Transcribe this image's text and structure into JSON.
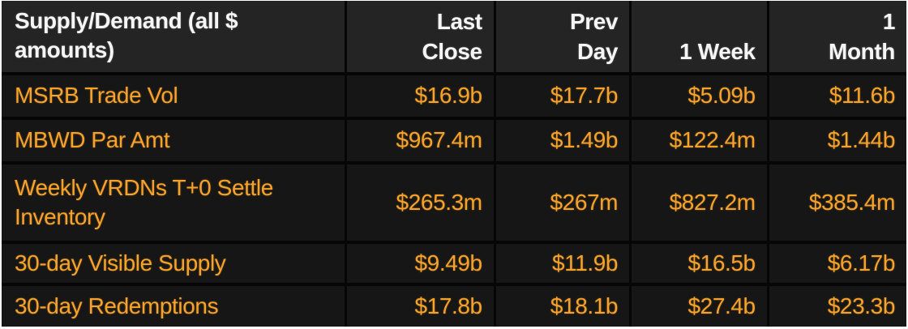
{
  "header": {
    "title": "Supply/Demand (all $\namounts)",
    "last_close": "Last\nClose",
    "prev_day": "Prev\nDay",
    "one_week": "1 Week",
    "one_month": "1\nMonth"
  },
  "rows": [
    {
      "label": "MSRB Trade Vol",
      "last_close": "$16.9b",
      "prev_day": "$17.7b",
      "one_week": "$5.09b",
      "one_month": "$11.6b"
    },
    {
      "label": "MBWD Par Amt",
      "last_close": "$967.4m",
      "prev_day": "$1.49b",
      "one_week": "$122.4m",
      "one_month": "$1.44b"
    },
    {
      "label": "Weekly VRDNs T+0 Settle Inventory",
      "last_close": "$265.3m",
      "prev_day": "$267m",
      "one_week": "$827.2m",
      "one_month": "$385.4m"
    },
    {
      "label": "30-day Visible Supply",
      "last_close": "$9.49b",
      "prev_day": "$11.9b",
      "one_week": "$16.5b",
      "one_month": "$6.17b"
    },
    {
      "label": "30-day Redemptions",
      "last_close": "$17.8b",
      "prev_day": "$18.1b",
      "one_week": "$27.4b",
      "one_month": "$23.3b"
    }
  ],
  "colors": {
    "accent_orange": "#f7a22a",
    "header_text": "#f5f5f5",
    "header_bg": "#242424",
    "row_bg": "#161616",
    "divider": "#060606",
    "frame": "#ffffff"
  },
  "chart_data": {
    "type": "table",
    "title": "Supply/Demand (all $ amounts)",
    "columns": [
      "Supply/Demand (all $ amounts)",
      "Last Close",
      "Prev Day",
      "1 Week",
      "1 Month"
    ],
    "rows": [
      [
        "MSRB Trade Vol",
        "$16.9b",
        "$17.7b",
        "$5.09b",
        "$11.6b"
      ],
      [
        "MBWD Par Amt",
        "$967.4m",
        "$1.49b",
        "$122.4m",
        "$1.44b"
      ],
      [
        "Weekly VRDNs T+0 Settle Inventory",
        "$265.3m",
        "$267m",
        "$827.2m",
        "$385.4m"
      ],
      [
        "30-day Visible Supply",
        "$9.49b",
        "$11.9b",
        "$16.5b",
        "$6.17b"
      ],
      [
        "30-day Redemptions",
        "$17.8b",
        "$18.1b",
        "$27.4b",
        "$23.3b"
      ]
    ]
  }
}
